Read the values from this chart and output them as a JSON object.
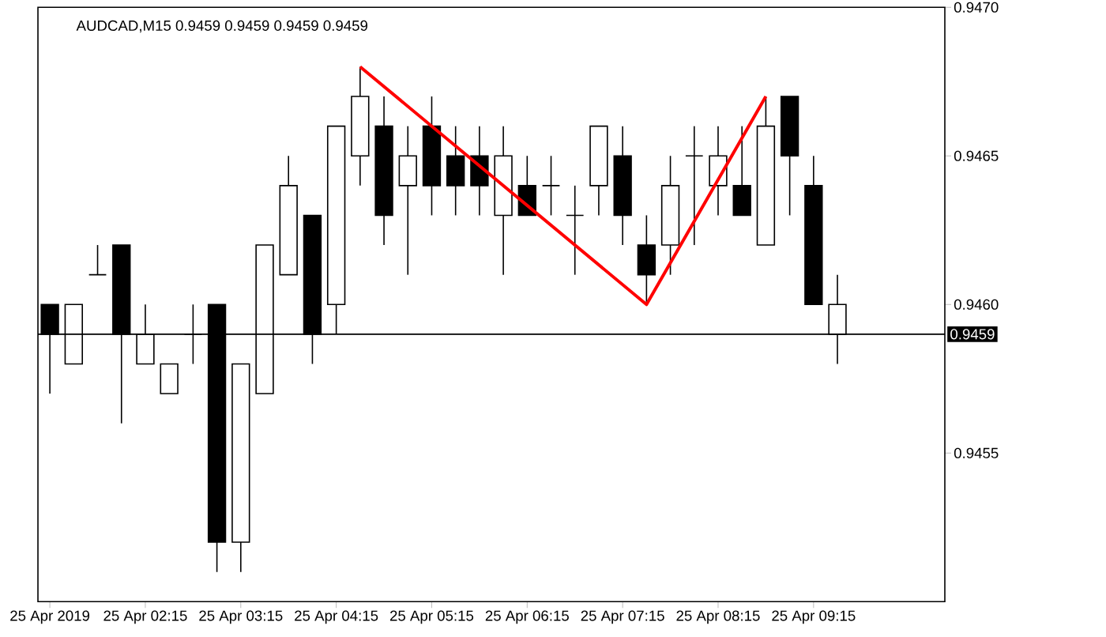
{
  "chart_data": {
    "type": "candlestick",
    "title": "AUDCAD,M15  0.9459 0.9459 0.9459 0.9459",
    "categories": [
      "25 Apr 2019",
      null,
      null,
      null,
      "25 Apr 02:15",
      null,
      null,
      null,
      "25 Apr 03:15",
      null,
      null,
      null,
      "25 Apr 04:15",
      null,
      null,
      null,
      "25 Apr 05:15",
      null,
      null,
      null,
      "25 Apr 06:15",
      null,
      null,
      null,
      "25 Apr 07:15",
      null,
      null,
      null,
      "25 Apr 08:15",
      null,
      null,
      null,
      "25 Apr 09:15",
      null,
      null,
      null,
      null,
      null
    ],
    "ohlc": [
      [
        0.946,
        0.946,
        0.9457,
        0.9459
      ],
      [
        0.9458,
        0.946,
        0.9458,
        0.946
      ],
      [
        0.9461,
        0.9462,
        0.9461,
        0.9461
      ],
      [
        0.9462,
        0.9462,
        0.9456,
        0.9459
      ],
      [
        0.9458,
        0.946,
        0.9458,
        0.9459
      ],
      [
        0.9457,
        0.9458,
        0.9457,
        0.9458
      ],
      [
        0.9459,
        0.946,
        0.9458,
        0.9459
      ],
      [
        0.946,
        0.946,
        0.9451,
        0.9452
      ],
      [
        0.9452,
        0.9458,
        0.9451,
        0.9458
      ],
      [
        0.9457,
        0.9462,
        0.9457,
        0.9462
      ],
      [
        0.9461,
        0.9465,
        0.9461,
        0.9464
      ],
      [
        0.9463,
        0.9463,
        0.9458,
        0.9459
      ],
      [
        0.946,
        0.9466,
        0.9459,
        0.9466
      ],
      [
        0.9465,
        0.9468,
        0.9464,
        0.9467
      ],
      [
        0.9466,
        0.9467,
        0.9462,
        0.9463
      ],
      [
        0.9464,
        0.9466,
        0.9461,
        0.9465
      ],
      [
        0.9466,
        0.9467,
        0.9463,
        0.9464
      ],
      [
        0.9465,
        0.9466,
        0.9463,
        0.9464
      ],
      [
        0.9465,
        0.9466,
        0.9463,
        0.9464
      ],
      [
        0.9463,
        0.9466,
        0.9461,
        0.9465
      ],
      [
        0.9464,
        0.9465,
        0.9463,
        0.9463
      ],
      [
        0.9464,
        0.9465,
        0.9463,
        0.9464
      ],
      [
        0.9463,
        0.9464,
        0.9461,
        0.9463
      ],
      [
        0.9464,
        0.9466,
        0.9463,
        0.9466
      ],
      [
        0.9465,
        0.9466,
        0.9462,
        0.9463
      ],
      [
        0.9462,
        0.9463,
        0.946,
        0.9461
      ],
      [
        0.9462,
        0.9465,
        0.9461,
        0.9464
      ],
      [
        0.9465,
        0.9466,
        0.9462,
        0.9465
      ],
      [
        0.9464,
        0.9466,
        0.9463,
        0.9465
      ],
      [
        0.9464,
        0.9466,
        0.9463,
        0.9463
      ],
      [
        0.9462,
        0.9467,
        0.9462,
        0.9466
      ],
      [
        0.9467,
        0.9467,
        0.9463,
        0.9465
      ],
      [
        0.9464,
        0.9465,
        0.946,
        0.946
      ],
      [
        0.9459,
        0.9461,
        0.9458,
        0.946
      ],
      null,
      null,
      null,
      null
    ],
    "series": [
      {
        "type": "line",
        "values": [
          null,
          null,
          null,
          null,
          null,
          null,
          null,
          null,
          null,
          null,
          null,
          null,
          null,
          0.9468,
          null,
          null,
          null,
          null,
          null,
          null,
          null,
          null,
          null,
          null,
          null,
          0.946,
          null,
          null,
          null,
          null,
          0.9467,
          null,
          null,
          null,
          null,
          null,
          null,
          null
        ],
        "color": "#ff0000"
      }
    ],
    "ylim": [
      0.945,
      0.947
    ],
    "yticks": [
      {
        "value": 0.9455,
        "label": "0.9455"
      },
      {
        "value": 0.946,
        "label": "0.9460"
      },
      {
        "value": 0.9465,
        "label": "0.9465"
      },
      {
        "value": 0.947,
        "label": "0.9470"
      }
    ],
    "ref_lines": [
      {
        "axis": "y",
        "value": 0.9459,
        "label": "0.9459",
        "color": "#000000"
      }
    ],
    "grid": false
  }
}
